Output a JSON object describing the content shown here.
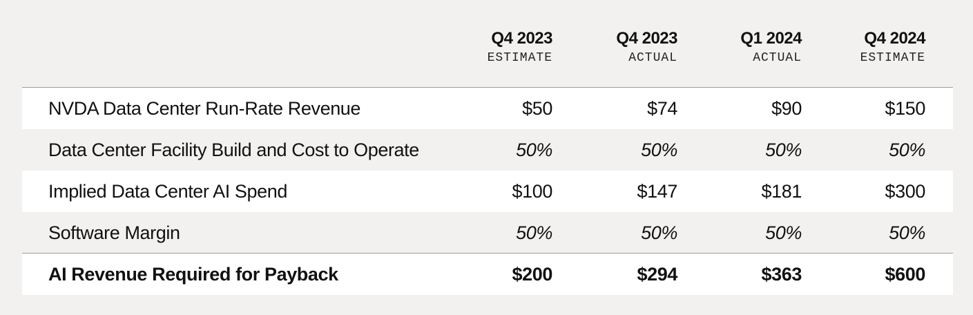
{
  "header": {
    "columns": [
      {
        "period": "Q4 2023",
        "status": "ESTIMATE"
      },
      {
        "period": "Q4 2023",
        "status": "ACTUAL"
      },
      {
        "period": "Q1 2024",
        "status": "ACTUAL"
      },
      {
        "period": "Q4 2024",
        "status": "ESTIMATE"
      }
    ]
  },
  "table": {
    "rows": [
      {
        "label": "NVDA Data Center Run-Rate Revenue",
        "cells": [
          "$50",
          "$74",
          "$90",
          "$150"
        ]
      },
      {
        "label": "Data Center Facility Build and Cost to Operate",
        "cells": [
          "50%",
          "50%",
          "50%",
          "50%"
        ]
      },
      {
        "label": "Implied Data Center AI Spend",
        "cells": [
          "$100",
          "$147",
          "$181",
          "$300"
        ]
      },
      {
        "label": "Software Margin",
        "cells": [
          "50%",
          "50%",
          "50%",
          "50%"
        ]
      },
      {
        "label": "AI Revenue Required for Payback",
        "cells": [
          "$200",
          "$294",
          "$363",
          "$600"
        ]
      }
    ]
  }
}
